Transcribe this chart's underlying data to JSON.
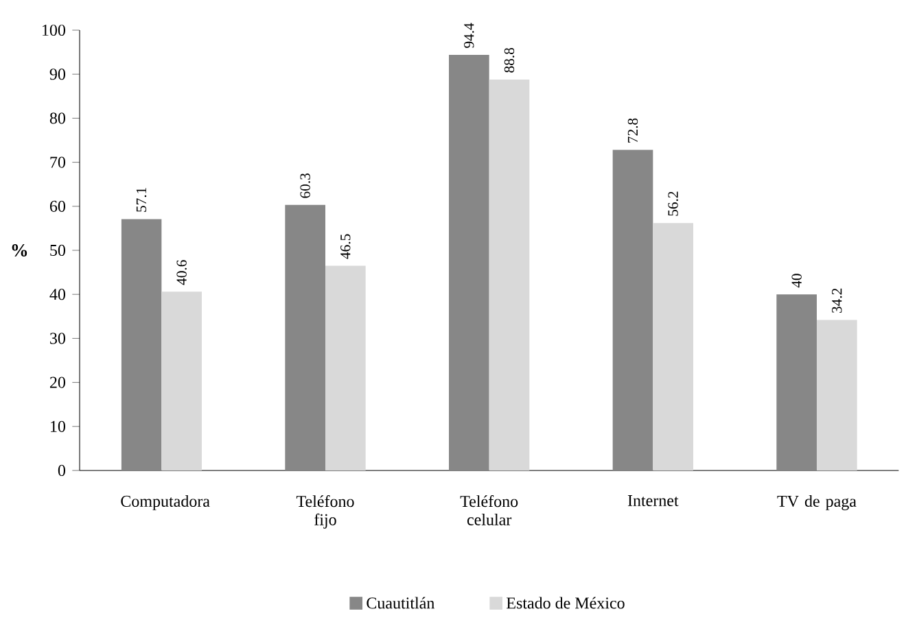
{
  "chart_data": {
    "type": "bar",
    "ylabel": "%",
    "categories": [
      "Computadora",
      "Teléfono fijo",
      "Teléfono celular",
      "Internet",
      "TV de paga"
    ],
    "series": [
      {
        "name": "Cuautitlán",
        "color": "#878787",
        "values": [
          57.1,
          60.3,
          94.4,
          72.8,
          40
        ]
      },
      {
        "name": "Estado de México",
        "color": "#d9d9d9",
        "values": [
          40.6,
          46.5,
          88.8,
          56.2,
          34.2
        ]
      }
    ],
    "ylim": [
      0,
      100
    ],
    "yticks": [
      0,
      10,
      20,
      30,
      40,
      50,
      60,
      70,
      80,
      90,
      100
    ],
    "data_labels": true,
    "grid": false,
    "legend": "bottom"
  }
}
